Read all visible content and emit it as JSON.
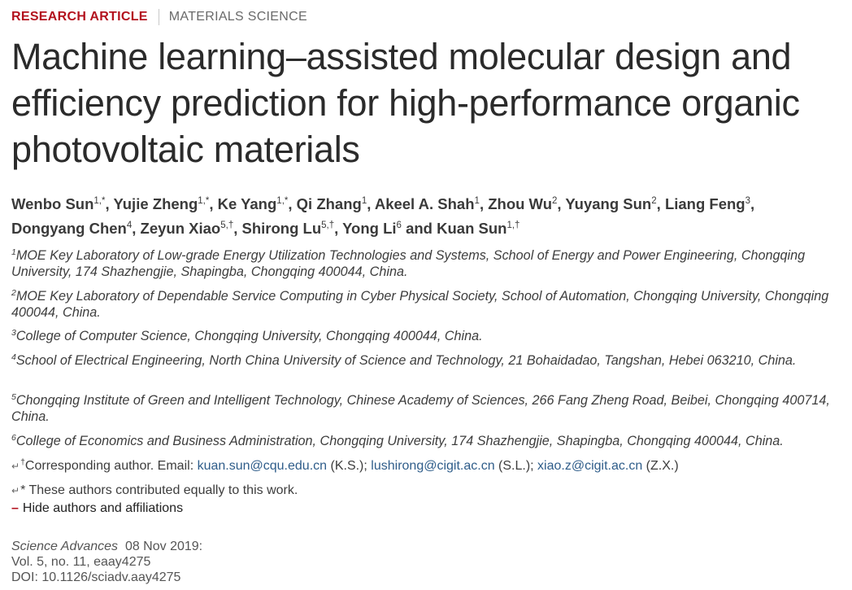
{
  "header": {
    "article_type": "RESEARCH ARTICLE",
    "subject": "MATERIALS SCIENCE"
  },
  "title": "Machine learning–assisted molecular design and efficiency prediction for high-performance organic photovoltaic materials",
  "authors": [
    {
      "name": "Wenbo Sun",
      "sup": "1,*",
      "after": ", "
    },
    {
      "name": "Yujie Zheng",
      "sup": "1,*",
      "after": ", "
    },
    {
      "name": "Ke Yang",
      "sup": "1,*",
      "after": ", "
    },
    {
      "name": "Qi Zhang",
      "sup": "1",
      "after": ", "
    },
    {
      "name": "Akeel A. Shah",
      "sup": "1",
      "after": ", "
    },
    {
      "name": "Zhou Wu",
      "sup": "2",
      "after": ", "
    },
    {
      "name": "Yuyang Sun",
      "sup": "2",
      "after": ", "
    },
    {
      "name": "Liang Feng",
      "sup": "3",
      "after": ", "
    },
    {
      "name": "Dongyang Chen",
      "sup": "4",
      "after": ", "
    },
    {
      "name": "Zeyun Xiao",
      "sup": "5,†",
      "after": ", "
    },
    {
      "name": "Shirong Lu",
      "sup": "5,†",
      "after": ", "
    },
    {
      "name": "Yong Li",
      "sup": "6",
      "after": " and "
    },
    {
      "name": "Kuan Sun",
      "sup": "1,†",
      "after": ""
    }
  ],
  "affiliations": [
    {
      "num": "1",
      "text": "MOE Key Laboratory of Low-grade Energy Utilization Technologies and Systems, School of Energy and Power Engineering, Chongqing University, 174 Shazhengjie, Shapingba, Chongqing 400044, China."
    },
    {
      "num": "2",
      "text": "MOE Key Laboratory of Dependable Service Computing in Cyber Physical Society, School of Automation, Chongqing University, Chongqing 400044, China."
    },
    {
      "num": "3",
      "text": "College of Computer Science, Chongqing University, Chongqing 400044, China."
    },
    {
      "num": "4",
      "text": "School of Electrical Engineering, North China University of Science and Technology, 21 Bohaidadao, Tangshan, Hebei 063210, China."
    },
    {
      "num": "5",
      "text": "Chongqing Institute of Green and Intelligent Technology, Chinese Academy of Sciences, 266 Fang Zheng Road, Beibei, Chongqing 400714, China."
    },
    {
      "num": "6",
      "text": "College of Economics and Business Administration, Chongqing University, 174 Shazhengjie, Shapingba, Chongqing 400044, China."
    }
  ],
  "corresponding": {
    "return_symbol": "↵",
    "marker": "†",
    "prefix": "Corresponding author. Email: ",
    "email1": "kuan.sun@cqu.edu.cn",
    "note1": " (K.S.); ",
    "email2": "lushirong@cigit.ac.cn",
    "note2": " (S.L.); ",
    "email3": "xiao.z@cigit.ac.cn",
    "note3": " (Z.X.)"
  },
  "equal_contribution": {
    "return_symbol": "↵",
    "text": "* These authors contributed equally to this work."
  },
  "hide_toggle": {
    "symbol": "–",
    "label": "Hide authors and affiliations"
  },
  "publication": {
    "journal": "Science Advances",
    "date": "08 Nov 2019:",
    "volume": "Vol. 5, no. 11, eaay4275",
    "doi": "DOI: 10.1126/sciadv.aay4275"
  }
}
